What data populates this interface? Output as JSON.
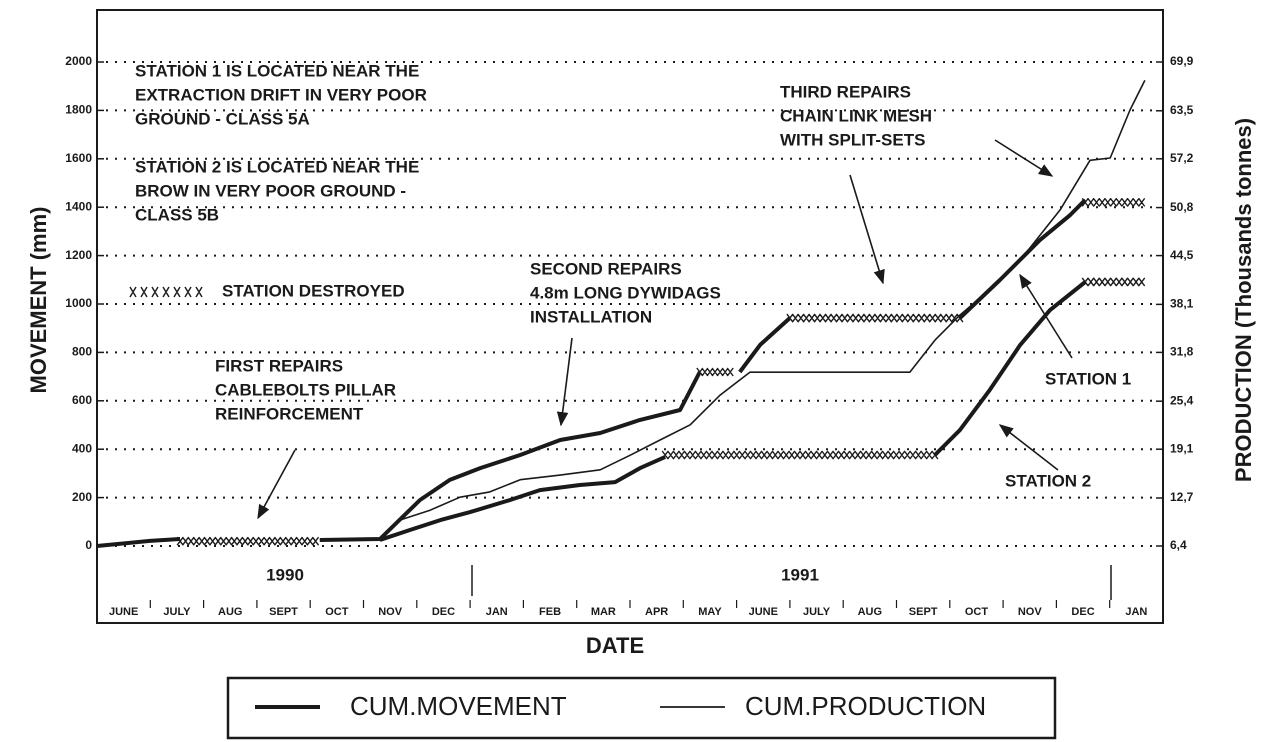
{
  "chart_data": {
    "type": "line",
    "ylabel": "MOVEMENT (mm)",
    "y2label": "PRODUCTION (Thousands tonnes)",
    "xlabel": "DATE",
    "categories": [
      "JUNE",
      "JULY",
      "AUG",
      "SEPT",
      "OCT",
      "NOV",
      "DEC",
      "JAN",
      "FEB",
      "MAR",
      "APR",
      "MAY",
      "JUNE",
      "JULY",
      "AUG",
      "SEPT",
      "OCT",
      "NOV",
      "DEC",
      "JAN"
    ],
    "year_labels": [
      "1990",
      "1991"
    ],
    "xlim": [
      0,
      20
    ],
    "ylim": [
      0,
      2000
    ],
    "yticks": [
      0,
      200,
      400,
      600,
      800,
      1000,
      1200,
      1400,
      1600,
      1800,
      2000
    ],
    "y2lim": [
      6.4,
      69.9
    ],
    "y2ticks": [
      {
        "value": 6.4,
        "label": "6,4"
      },
      {
        "value": 12.7,
        "label": "12,7"
      },
      {
        "value": 19.1,
        "label": "19,1"
      },
      {
        "value": 25.4,
        "label": "25,4"
      },
      {
        "value": 31.8,
        "label": "31,8"
      },
      {
        "value": 38.1,
        "label": "38,1"
      },
      {
        "value": 44.5,
        "label": "44,5"
      },
      {
        "value": 50.8,
        "label": "50,8"
      },
      {
        "value": 57.2,
        "label": "57,2"
      },
      {
        "value": 63.5,
        "label": "63,5"
      },
      {
        "value": 69.9,
        "label": "69,9"
      }
    ],
    "grid": true,
    "color": "#1a1a1a",
    "series": [
      {
        "name": "STATION 1",
        "style": "thick",
        "axis": "y",
        "x": [
          0,
          0.99,
          1.56,
          null,
          4.18,
          5.31,
          6.06,
          6.62,
          7.19,
          7.94,
          8.69,
          9.44,
          10.19,
          10.94,
          11.31,
          null,
          12.06,
          12.44,
          13.0,
          null,
          16.19,
          16.94,
          17.69,
          18.26,
          18.54
        ],
        "values": [
          0,
          21,
          29,
          null,
          25,
          29,
          190,
          273,
          322,
          376,
          438,
          467,
          521,
          562,
          719,
          null,
          719,
          831,
          942,
          null,
          942,
          1099,
          1264,
          1368,
          1430
        ]
      },
      {
        "name": "STATION 2",
        "style": "thick",
        "axis": "y",
        "x": [
          5.31,
          5.87,
          6.44,
          7.0,
          7.75,
          8.31,
          9.06,
          9.72,
          10.19,
          10.66,
          null,
          15.72,
          16.19,
          16.75,
          17.32,
          17.88,
          18.54
        ],
        "values": [
          25,
          66,
          107,
          140,
          190,
          231,
          252,
          264,
          322,
          368,
          null,
          376,
          479,
          645,
          831,
          975,
          1091
        ]
      },
      {
        "style": "thin",
        "axis": "y2",
        "x": [
          4.18,
          5.31,
          5.68,
          6.25,
          6.81,
          7.37,
          7.94,
          8.69,
          9.44,
          10.0,
          10.56,
          11.13,
          11.69,
          12.25,
          15.25,
          15.72,
          16.19,
          16.75,
          17.32,
          18.07,
          18.63,
          19.01,
          19.38,
          19.66
        ],
        "values": [
          7.2,
          7.2,
          9.8,
          11.1,
          12.8,
          13.5,
          15.1,
          15.7,
          16.4,
          18.3,
          20.3,
          22.3,
          26.2,
          29.2,
          29.2,
          33.4,
          36.7,
          40.0,
          43.9,
          50.5,
          57.0,
          57.3,
          63.6,
          67.5
        ]
      }
    ],
    "destroyed": [
      {
        "x": [
          1.56,
          4.1
        ],
        "y": [
          20,
          20
        ]
      },
      {
        "x": [
          11.31,
          11.88
        ],
        "y": [
          719,
          719
        ]
      },
      {
        "x": [
          13.0,
          16.19
        ],
        "y": [
          942,
          942
        ]
      },
      {
        "x": [
          18.54,
          19.6
        ],
        "y": [
          1420,
          1420
        ]
      },
      {
        "x": [
          10.66,
          15.72
        ],
        "y": [
          376,
          376
        ]
      },
      {
        "x": [
          18.54,
          19.6
        ],
        "y": [
          1091,
          1091
        ]
      }
    ],
    "destroyed_key": "STATION DESTROYED",
    "annotations": [
      {
        "lines": [
          "STATION 1 IS LOCATED NEAR THE",
          "EXTRACTION DRIFT IN VERY POOR",
          "GROUND - CLASS 5A"
        ]
      },
      {
        "lines": [
          "STATION 2 IS LOCATED NEAR THE",
          "BROW IN VERY POOR GROUND -",
          "CLASS 5B"
        ]
      },
      {
        "lines": [
          "FIRST REPAIRS",
          "CABLEBOLTS PILLAR",
          "REINFORCEMENT"
        ]
      },
      {
        "lines": [
          "SECOND REPAIRS",
          "4.8m LONG DYWIDAGS",
          "INSTALLATION"
        ]
      },
      {
        "lines": [
          "THIRD REPAIRS",
          "CHAIN LINK MESH",
          "WITH SPLIT-SETS"
        ]
      }
    ],
    "legend": [
      {
        "label": "CUM.MOVEMENT",
        "style": "thick"
      },
      {
        "label": "CUM.PRODUCTION",
        "style": "thin"
      }
    ]
  }
}
